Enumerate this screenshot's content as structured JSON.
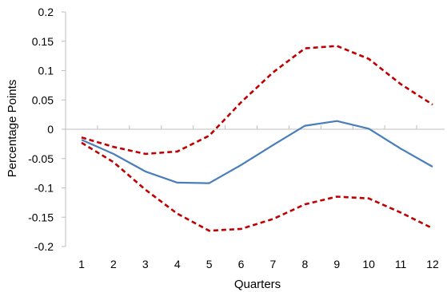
{
  "chart_data": {
    "type": "line",
    "xlabel": "Quarters",
    "ylabel": "Percentage Points",
    "x": [
      1,
      2,
      3,
      4,
      5,
      6,
      7,
      8,
      9,
      10,
      11,
      12
    ],
    "ylim": [
      -0.2,
      0.2
    ],
    "yticks": [
      "0.2",
      "0.15",
      "0.1",
      "0.05",
      "0",
      "-0.05",
      "-0.1",
      "-0.15",
      "-0.2"
    ],
    "ytick_values": [
      0.2,
      0.15,
      0.1,
      0.05,
      0,
      -0.05,
      -0.1,
      -0.15,
      -0.2
    ],
    "xticks": [
      "1",
      "2",
      "3",
      "4",
      "5",
      "6",
      "7",
      "8",
      "9",
      "10",
      "11",
      "12"
    ],
    "grid": false,
    "legend": "none",
    "series": [
      {
        "style": "solid",
        "color": "#4a7ebb",
        "values": [
          -0.018,
          -0.042,
          -0.072,
          -0.091,
          -0.092,
          -0.061,
          -0.027,
          0.006,
          0.014,
          0.001,
          -0.033,
          -0.064
        ]
      },
      {
        "style": "dashed",
        "color": "#c00000",
        "values": [
          -0.014,
          -0.03,
          -0.042,
          -0.038,
          -0.011,
          0.046,
          0.097,
          0.138,
          0.142,
          0.12,
          0.077,
          0.042
        ]
      },
      {
        "style": "dashed",
        "color": "#c00000",
        "values": [
          -0.023,
          -0.056,
          -0.103,
          -0.144,
          -0.173,
          -0.17,
          -0.153,
          -0.128,
          -0.115,
          -0.118,
          -0.142,
          -0.169
        ]
      }
    ]
  }
}
